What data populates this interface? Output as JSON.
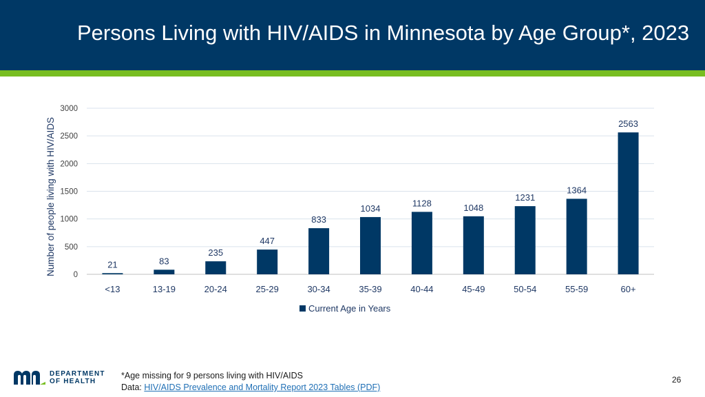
{
  "header": {
    "title": "Persons Living with HIV/AIDS in Minnesota by Age Group*, 2023"
  },
  "colors": {
    "header_bg": "#003865",
    "accent_green": "#78be21",
    "bar": "#003865",
    "link": "#1f6fb5"
  },
  "chart_data": {
    "type": "bar",
    "categories": [
      "<13",
      "13-19",
      "20-24",
      "25-29",
      "30-34",
      "35-39",
      "40-44",
      "45-49",
      "50-54",
      "55-59",
      "60+"
    ],
    "series": [
      {
        "name": "Current Age in Years",
        "values": [
          21,
          83,
          235,
          447,
          833,
          1034,
          1128,
          1048,
          1231,
          1364,
          2563
        ]
      }
    ],
    "xlabel": "",
    "ylabel": "Number of people living with HIV/AIDS",
    "ylim": [
      0,
      3000
    ],
    "yticks": [
      0,
      500,
      1000,
      1500,
      2000,
      2500,
      3000
    ],
    "grid": true,
    "legend": "bottom",
    "data_labels": true
  },
  "footer": {
    "note": "*Age missing for 9 persons living with HIV/AIDS",
    "data_prefix": "Data: ",
    "link_text": "HIV/AIDS Prevalence and Mortality Report 2023 Tables (PDF)",
    "page_number": "26"
  },
  "logo": {
    "line1": "DEPARTMENT",
    "line2": "OF HEALTH"
  }
}
